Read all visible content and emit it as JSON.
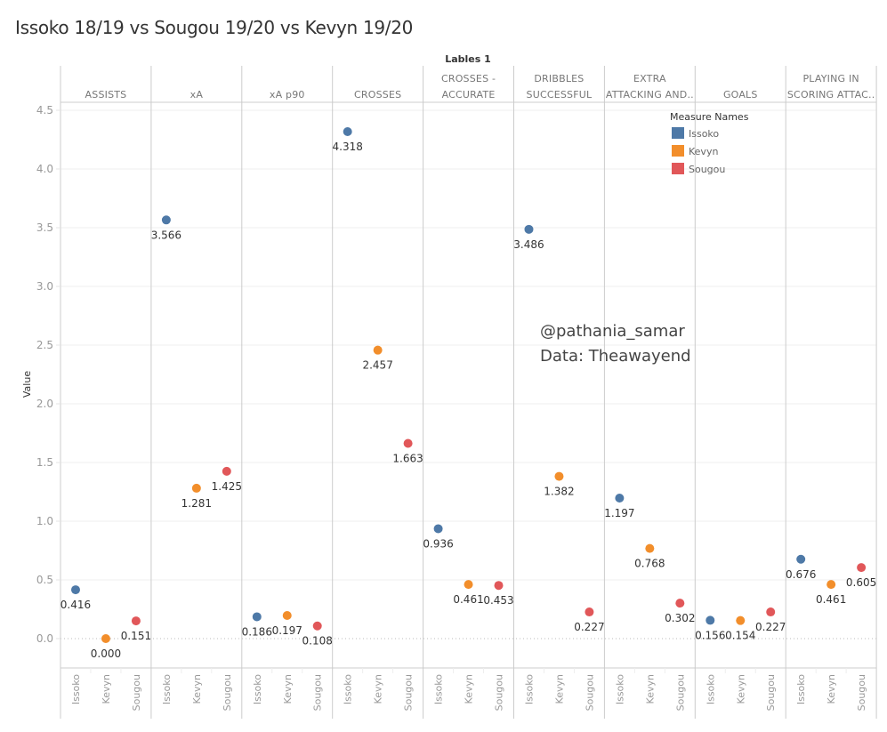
{
  "chart_data": {
    "type": "scatter",
    "title": "Issoko 18/19 vs Sougou 19/20 vs Kevyn 19/20",
    "column_header_title": "Lables 1",
    "ylabel": "Value",
    "xlabel": "",
    "ylim": [
      -0.25,
      4.5
    ],
    "yticks": [
      0.0,
      0.5,
      1.0,
      1.5,
      2.0,
      2.5,
      3.0,
      3.5,
      4.0,
      4.5
    ],
    "ytick_labels": [
      "0.0",
      "0.5",
      "1.0",
      "1.5",
      "2.0",
      "2.5",
      "3.0",
      "3.5",
      "4.0",
      "4.5"
    ],
    "grid": true,
    "zero_line": "dotted",
    "categories": [
      {
        "label_lines": [
          "ASSISTS"
        ]
      },
      {
        "label_lines": [
          "xA"
        ]
      },
      {
        "label_lines": [
          "xA p90"
        ]
      },
      {
        "label_lines": [
          "CROSSES"
        ]
      },
      {
        "label_lines": [
          "CROSSES -",
          "ACCURATE"
        ]
      },
      {
        "label_lines": [
          "DRIBBLES",
          "SUCCESSFUL"
        ]
      },
      {
        "label_lines": [
          "EXTRA",
          "ATTACKING AND.."
        ]
      },
      {
        "label_lines": [
          "GOALS"
        ]
      },
      {
        "label_lines": [
          "PLAYING IN",
          "SCORING ATTAC.."
        ]
      }
    ],
    "sub_categories": [
      "Issoko",
      "Kevyn",
      "Sougou"
    ],
    "series": [
      {
        "name": "Issoko",
        "color": "#4e79a7",
        "values": [
          0.416,
          3.566,
          0.186,
          4.318,
          0.936,
          3.486,
          1.197,
          0.156,
          0.676
        ],
        "labels": [
          "0.416",
          "3.566",
          "0.186",
          "4.318",
          "0.936",
          "3.486",
          "1.197",
          "0.156",
          "0.676"
        ]
      },
      {
        "name": "Kevyn",
        "color": "#f28e2b",
        "values": [
          0.0,
          1.281,
          0.197,
          2.457,
          0.461,
          1.382,
          0.768,
          0.154,
          0.461
        ],
        "labels": [
          "0.000",
          "1.281",
          "0.197",
          "2.457",
          "0.461",
          "1.382",
          "0.768",
          "0.154",
          "0.461"
        ]
      },
      {
        "name": "Sougou",
        "color": "#e15759",
        "values": [
          0.151,
          1.425,
          0.108,
          1.663,
          0.453,
          0.227,
          0.302,
          0.227,
          0.605
        ],
        "labels": [
          "0.151",
          "1.425",
          "0.108",
          "1.663",
          "0.453",
          "0.227",
          "0.302",
          "0.227",
          "0.605"
        ]
      }
    ],
    "legend": {
      "title": "Measure Names",
      "placement": "top-right",
      "items": [
        {
          "name": "Issoko",
          "color": "#4e79a7"
        },
        {
          "name": "Kevyn",
          "color": "#f28e2b"
        },
        {
          "name": "Sougou",
          "color": "#e15759"
        }
      ]
    },
    "annotations": [
      "@pathania_samar",
      "Data: Theawayend"
    ]
  }
}
